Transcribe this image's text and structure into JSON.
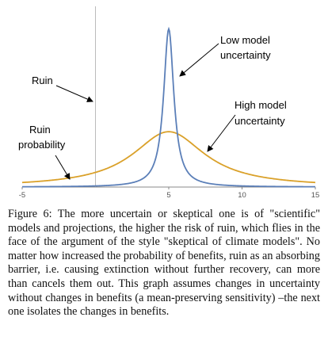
{
  "chart_data": {
    "type": "line",
    "xlim": [
      -5,
      15
    ],
    "ylim": [
      0,
      0.85
    ],
    "x_ticks": [
      "-5",
      "5",
      "10",
      "15"
    ],
    "grid": false,
    "ruin_barrier_x": 0,
    "series": [
      {
        "label": "Low model uncertainty",
        "curve": "cauchy",
        "center": 5,
        "peak": 0.8,
        "half_width": 0.42,
        "color": "#5b7fb8"
      },
      {
        "label": "High model uncertainty",
        "curve": "cauchy",
        "center": 5,
        "peak": 0.28,
        "half_width": 3.0,
        "color": "#daa12a"
      }
    ],
    "annotations": {
      "ruin": "Ruin",
      "ruin_probability": [
        "Ruin",
        "probability"
      ],
      "low_model": [
        "Low model",
        "uncertainty"
      ],
      "high_model": [
        "High model",
        "uncertainty"
      ]
    }
  },
  "caption": "Figure 6: The more uncertain or skeptical one is of \"scientific\" models and projections, the higher the risk of ruin, which flies in the face of the argument of the style \"skeptical of climate models\". No matter how increased the probability of benefits, ruin as an absorbing barrier, i.e. causing extinction without further recovery, can more than cancels them out. This graph assumes changes in uncertainty without changes in benefits (a mean-preserving sensitivity) –the next one isolates the changes in benefits."
}
